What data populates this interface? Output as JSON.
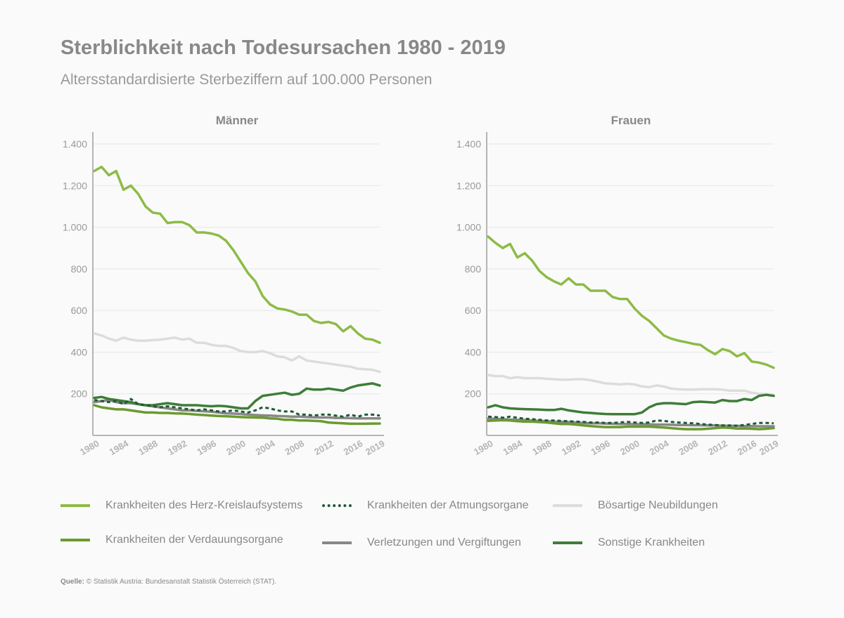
{
  "title": "Sterblichkeit nach Todesursachen 1980 - 2019",
  "subtitle": "Altersstandardisierte Sterbeziffern auf 100.000 Personen",
  "source": {
    "label": "Quelle:",
    "text": "© Statistik Austria: Bundesanstalt Statistik Österreich (STAT)."
  },
  "legend": [
    {
      "name": "Krankheiten des Herz-Kreislaufsystems",
      "color": "#8dbb45",
      "style": "solid"
    },
    {
      "name": "Krankheiten der Atmungsorgane",
      "color": "#1e5a36",
      "style": "dotted"
    },
    {
      "name": "Bösartige Neubildungen",
      "color": "#dcdcdc",
      "style": "solid"
    },
    {
      "name": "Krankheiten der Verdauungsorgane",
      "color": "#6b9a2e",
      "style": "solid"
    },
    {
      "name": "Verletzungen und Vergiftungen",
      "color": "#888888",
      "style": "solid"
    },
    {
      "name": "Sonstige Krankheiten",
      "color": "#3e7d38",
      "style": "solid"
    }
  ],
  "chart_data": [
    {
      "type": "line",
      "title": "Männer",
      "ylim": [
        0,
        1400
      ],
      "y_ticks": [
        200,
        400,
        600,
        800,
        1000,
        1200,
        1400
      ],
      "y_tick_labels": [
        "200",
        "400",
        "600",
        "800",
        "1.000",
        "1.200",
        "1.400"
      ],
      "x_ticks": [
        1980,
        1984,
        1988,
        1992,
        1996,
        2000,
        2004,
        2008,
        2012,
        2016,
        2019
      ],
      "grid": true,
      "x": [
        1980,
        1981,
        1982,
        1983,
        1984,
        1985,
        1986,
        1987,
        1988,
        1989,
        1990,
        1991,
        1992,
        1993,
        1994,
        1995,
        1996,
        1997,
        1998,
        1999,
        2000,
        2001,
        2002,
        2003,
        2004,
        2005,
        2006,
        2007,
        2008,
        2009,
        2010,
        2011,
        2012,
        2013,
        2014,
        2015,
        2016,
        2017,
        2018,
        2019
      ],
      "series": [
        {
          "name": "Krankheiten des Herz-Kreislaufsystems",
          "values": [
            1270,
            1290,
            1250,
            1270,
            1180,
            1200,
            1160,
            1100,
            1070,
            1065,
            1020,
            1025,
            1025,
            1010,
            975,
            975,
            970,
            960,
            935,
            890,
            835,
            780,
            740,
            670,
            630,
            610,
            605,
            595,
            580,
            580,
            550,
            540,
            545,
            535,
            500,
            525,
            490,
            465,
            460,
            445
          ]
        },
        {
          "name": "Krankheiten der Atmungsorgane",
          "values": [
            170,
            165,
            160,
            165,
            150,
            175,
            150,
            145,
            140,
            135,
            140,
            135,
            130,
            125,
            120,
            125,
            120,
            115,
            115,
            120,
            115,
            110,
            120,
            135,
            130,
            120,
            115,
            115,
            100,
            100,
            95,
            100,
            100,
            95,
            90,
            100,
            90,
            100,
            100,
            95
          ]
        },
        {
          "name": "Bösartige Neubildungen",
          "values": [
            490,
            480,
            465,
            455,
            470,
            460,
            455,
            455,
            458,
            460,
            465,
            470,
            460,
            465,
            445,
            445,
            435,
            430,
            430,
            420,
            405,
            400,
            400,
            405,
            395,
            380,
            375,
            360,
            380,
            360,
            355,
            350,
            345,
            340,
            335,
            330,
            320,
            318,
            315,
            305
          ]
        },
        {
          "name": "Krankheiten der Verdauungsorgane",
          "values": [
            145,
            135,
            130,
            125,
            125,
            120,
            115,
            110,
            110,
            108,
            108,
            106,
            105,
            103,
            100,
            98,
            95,
            93,
            92,
            90,
            88,
            87,
            86,
            85,
            82,
            80,
            75,
            75,
            72,
            72,
            70,
            68,
            62,
            60,
            58,
            56,
            56,
            56,
            57,
            57
          ]
        },
        {
          "name": "Verletzungen und Vergiftungen",
          "values": [
            160,
            165,
            170,
            160,
            155,
            155,
            150,
            145,
            140,
            135,
            130,
            125,
            120,
            120,
            118,
            116,
            114,
            110,
            106,
            105,
            103,
            100,
            98,
            96,
            95,
            93,
            92,
            90,
            90,
            88,
            87,
            86,
            86,
            84,
            84,
            83,
            82,
            82,
            82,
            82
          ]
        },
        {
          "name": "Sonstige Krankheiten",
          "values": [
            180,
            185,
            175,
            170,
            165,
            160,
            150,
            145,
            145,
            150,
            155,
            150,
            145,
            145,
            145,
            142,
            140,
            142,
            140,
            135,
            130,
            130,
            165,
            190,
            195,
            200,
            205,
            195,
            200,
            225,
            220,
            220,
            225,
            220,
            215,
            230,
            240,
            245,
            250,
            240
          ]
        }
      ]
    },
    {
      "type": "line",
      "title": "Frauen",
      "ylim": [
        0,
        1400
      ],
      "y_ticks": [
        200,
        400,
        600,
        800,
        1000,
        1200,
        1400
      ],
      "y_tick_labels": [
        "200",
        "400",
        "600",
        "800",
        "1.000",
        "1.200",
        "1.400"
      ],
      "x_ticks": [
        1980,
        1984,
        1988,
        1992,
        1996,
        2000,
        2004,
        2008,
        2012,
        2016,
        2019
      ],
      "grid": true,
      "x": [
        1980,
        1981,
        1982,
        1983,
        1984,
        1985,
        1986,
        1987,
        1988,
        1989,
        1990,
        1991,
        1992,
        1993,
        1994,
        1995,
        1996,
        1997,
        1998,
        1999,
        2000,
        2001,
        2002,
        2003,
        2004,
        2005,
        2006,
        2007,
        2008,
        2009,
        2010,
        2011,
        2012,
        2013,
        2014,
        2015,
        2016,
        2017,
        2018,
        2019
      ],
      "series": [
        {
          "name": "Krankheiten des Herz-Kreislaufsystems",
          "values": [
            955,
            925,
            900,
            920,
            855,
            875,
            840,
            790,
            760,
            740,
            725,
            755,
            725,
            725,
            695,
            695,
            695,
            665,
            655,
            655,
            610,
            575,
            550,
            515,
            480,
            465,
            455,
            448,
            440,
            435,
            410,
            390,
            415,
            405,
            380,
            395,
            355,
            350,
            340,
            325
          ]
        },
        {
          "name": "Krankheiten der Atmungsorgane",
          "values": [
            90,
            88,
            85,
            90,
            85,
            80,
            78,
            75,
            72,
            72,
            70,
            68,
            66,
            65,
            62,
            62,
            60,
            60,
            62,
            65,
            62,
            60,
            62,
            72,
            70,
            65,
            62,
            60,
            58,
            55,
            52,
            50,
            48,
            48,
            47,
            50,
            55,
            60,
            60,
            58
          ]
        },
        {
          "name": "Bösartige Neubildungen",
          "values": [
            290,
            285,
            285,
            275,
            280,
            275,
            275,
            275,
            272,
            270,
            268,
            268,
            270,
            270,
            265,
            258,
            250,
            248,
            245,
            248,
            245,
            235,
            232,
            240,
            235,
            225,
            222,
            220,
            220,
            222,
            222,
            222,
            220,
            215,
            215,
            215,
            205,
            200,
            198,
            195
          ]
        },
        {
          "name": "Krankheiten der Verdauungsorgane",
          "values": [
            70,
            72,
            73,
            72,
            68,
            66,
            66,
            64,
            62,
            58,
            55,
            55,
            52,
            48,
            45,
            42,
            40,
            40,
            40,
            42,
            42,
            42,
            42,
            40,
            38,
            35,
            32,
            30,
            30,
            30,
            32,
            35,
            38,
            36,
            33,
            33,
            32,
            30,
            32,
            35
          ]
        },
        {
          "name": "Verletzungen und Vergiftungen",
          "values": [
            80,
            80,
            78,
            76,
            75,
            74,
            72,
            70,
            68,
            66,
            65,
            64,
            62,
            60,
            58,
            58,
            57,
            56,
            55,
            55,
            54,
            54,
            53,
            52,
            52,
            51,
            50,
            50,
            49,
            49,
            48,
            48,
            47,
            46,
            46,
            45,
            45,
            44,
            44,
            44
          ]
        },
        {
          "name": "Sonstige Krankheiten",
          "values": [
            135,
            145,
            135,
            130,
            128,
            126,
            125,
            124,
            122,
            122,
            128,
            120,
            115,
            110,
            108,
            105,
            103,
            102,
            102,
            102,
            102,
            110,
            135,
            150,
            155,
            155,
            152,
            150,
            160,
            162,
            160,
            158,
            170,
            165,
            165,
            175,
            170,
            190,
            195,
            190
          ]
        }
      ]
    }
  ]
}
